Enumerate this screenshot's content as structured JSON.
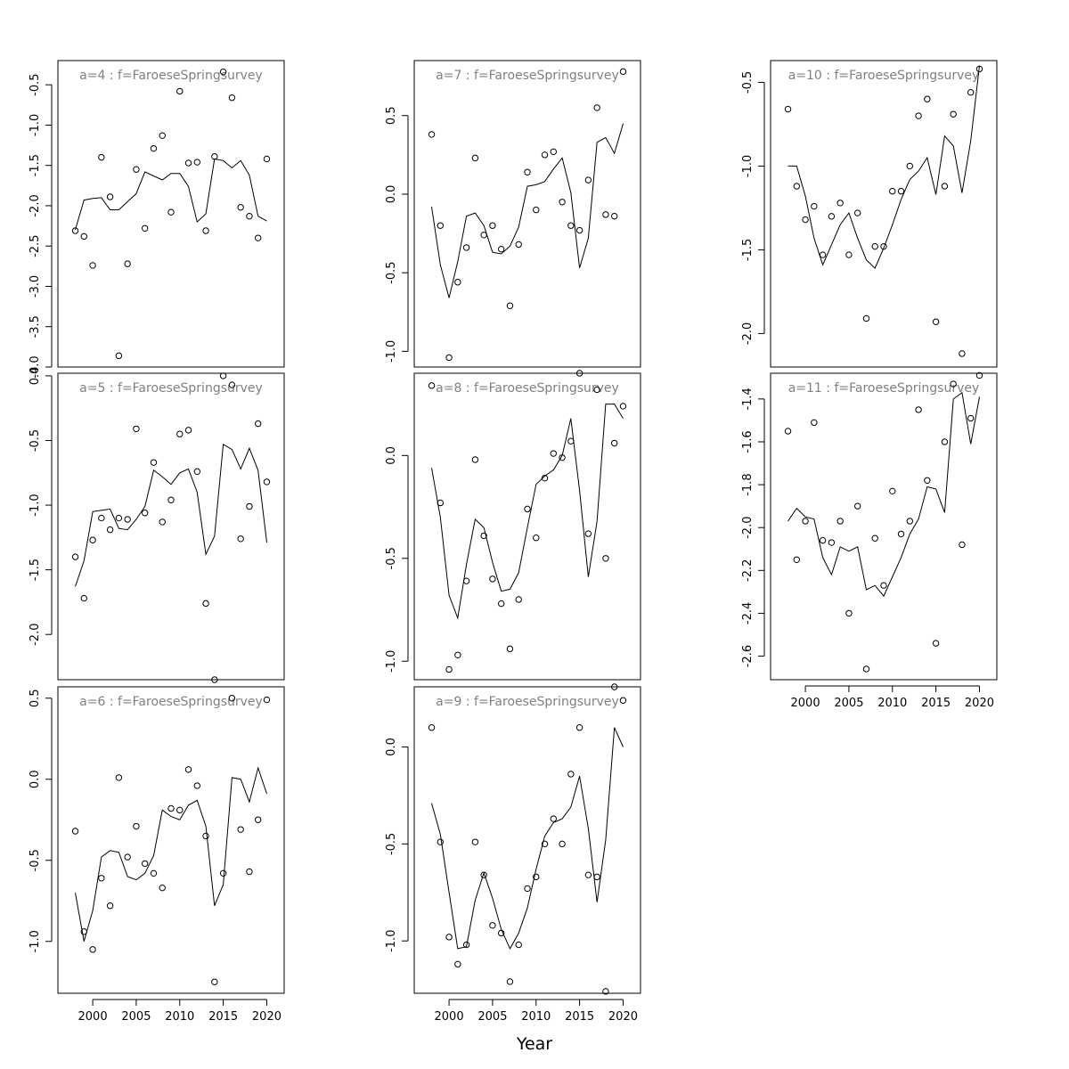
{
  "figure": {
    "xlabel": "Year"
  },
  "chart_data": [
    {
      "type": "line",
      "title": "a=4  :  f=FaroeseSpringsurvey",
      "xlim": [
        1996,
        2022
      ],
      "ylim": [
        -4.0,
        -0.2
      ],
      "yticks": [
        -4.0,
        -3.5,
        -3.0,
        -2.5,
        -2.0,
        -1.5,
        -1.0,
        -0.5
      ],
      "ytick_labels": [
        "-4.0",
        "-3.5",
        "-3.0",
        "-2.5",
        "-2.0",
        "-1.5",
        "-1.0",
        "-0.5"
      ],
      "xticks": [],
      "xtick_labels": [],
      "x": [
        1998,
        1999,
        2000,
        2001,
        2002,
        2003,
        2004,
        2005,
        2006,
        2007,
        2008,
        2009,
        2010,
        2011,
        2012,
        2013,
        2014,
        2015,
        2016,
        2017,
        2018,
        2019,
        2020
      ],
      "points": [
        -2.31,
        -2.38,
        -2.74,
        -1.4,
        -1.89,
        -3.86,
        -2.72,
        -1.55,
        -2.28,
        -1.29,
        -1.13,
        -2.08,
        -0.58,
        -1.47,
        -1.46,
        -2.31,
        -1.39,
        -0.34,
        -0.66,
        -2.02,
        -2.13,
        -2.4,
        -1.42
      ],
      "line": [
        -2.3,
        -1.93,
        -1.91,
        -1.9,
        -2.05,
        -2.05,
        -1.95,
        -1.85,
        -1.58,
        -1.63,
        -1.68,
        -1.6,
        -1.6,
        -1.76,
        -2.2,
        -2.1,
        -1.42,
        -1.44,
        -1.53,
        -1.44,
        -1.62,
        -2.13,
        -2.19
      ]
    },
    {
      "type": "line",
      "title": "a=5  :  f=FaroeseSpringsurvey",
      "xlim": [
        1996,
        2022
      ],
      "ylim": [
        -2.35,
        0.02
      ],
      "yticks": [
        -2.0,
        -1.5,
        -1.0,
        -0.5,
        0.0
      ],
      "ytick_labels": [
        "-2.0",
        "-1.5",
        "-1.0",
        "-0.5",
        "0.0"
      ],
      "xticks": [],
      "xtick_labels": [],
      "x": [
        1998,
        1999,
        2000,
        2001,
        2002,
        2003,
        2004,
        2005,
        2006,
        2007,
        2008,
        2009,
        2010,
        2011,
        2012,
        2013,
        2014,
        2015,
        2016,
        2017,
        2018,
        2019,
        2020
      ],
      "points": [
        -1.4,
        -1.72,
        -1.27,
        -1.1,
        -1.19,
        -1.1,
        -1.11,
        -0.41,
        -1.06,
        -0.67,
        -1.13,
        -0.96,
        -0.45,
        -0.42,
        -0.74,
        -1.76,
        -2.35,
        0.0,
        -0.07,
        -1.26,
        -1.01,
        -0.37,
        -0.82
      ],
      "line": [
        -1.63,
        -1.43,
        -1.05,
        -1.04,
        -1.03,
        -1.18,
        -1.19,
        -1.11,
        -1.01,
        -0.73,
        -0.78,
        -0.84,
        -0.75,
        -0.72,
        -0.9,
        -1.38,
        -1.24,
        -0.53,
        -0.57,
        -0.72,
        -0.56,
        -0.73,
        -1.29
      ]
    },
    {
      "type": "line",
      "title": "a=6  :  f=FaroeseSpringsurvey",
      "xlim": [
        1996,
        2022
      ],
      "ylim": [
        -1.32,
        0.57
      ],
      "yticks": [
        -1.0,
        -0.5,
        0.0,
        0.5
      ],
      "ytick_labels": [
        "-1.0",
        "-0.5",
        "0.0",
        "0.5"
      ],
      "xticks": [
        2000,
        2005,
        2010,
        2015,
        2020
      ],
      "xtick_labels": [
        "2000",
        "2005",
        "2010",
        "2015",
        "2020"
      ],
      "x": [
        1998,
        1999,
        2000,
        2001,
        2002,
        2003,
        2004,
        2005,
        2006,
        2007,
        2008,
        2009,
        2010,
        2011,
        2012,
        2013,
        2014,
        2015,
        2016,
        2017,
        2018,
        2019,
        2020
      ],
      "points": [
        -0.32,
        -0.94,
        -1.05,
        -0.61,
        -0.78,
        0.01,
        -0.48,
        -0.29,
        -0.52,
        -0.58,
        -0.67,
        -0.18,
        -0.19,
        0.06,
        -0.04,
        -0.35,
        -1.25,
        -0.58,
        0.5,
        -0.31,
        -0.57,
        -0.25,
        0.49
      ],
      "line": [
        -0.7,
        -1.0,
        -0.81,
        -0.48,
        -0.44,
        -0.45,
        -0.6,
        -0.62,
        -0.58,
        -0.47,
        -0.19,
        -0.23,
        -0.25,
        -0.16,
        -0.13,
        -0.29,
        -0.78,
        -0.65,
        0.01,
        0.0,
        -0.14,
        0.07,
        -0.09
      ]
    },
    {
      "type": "line",
      "title": "a=7  :  f=FaroeseSpringsurvey",
      "xlim": [
        1996,
        2022
      ],
      "ylim": [
        -1.1,
        0.85
      ],
      "yticks": [
        -1.0,
        -0.5,
        0.0,
        0.5
      ],
      "ytick_labels": [
        "-1.0",
        "-0.5",
        "0.0",
        "0.5"
      ],
      "xticks": [],
      "xtick_labels": [],
      "x": [
        1998,
        1999,
        2000,
        2001,
        2002,
        2003,
        2004,
        2005,
        2006,
        2007,
        2008,
        2009,
        2010,
        2011,
        2012,
        2013,
        2014,
        2015,
        2016,
        2017,
        2018,
        2019,
        2020
      ],
      "points": [
        0.38,
        -0.2,
        -1.04,
        -0.56,
        -0.34,
        0.23,
        -0.26,
        -0.2,
        -0.35,
        -0.71,
        -0.32,
        0.14,
        -0.1,
        0.25,
        0.27,
        -0.05,
        -0.2,
        -0.23,
        0.09,
        0.55,
        -0.13,
        -0.14,
        0.78
      ],
      "line": [
        -0.08,
        -0.45,
        -0.66,
        -0.43,
        -0.14,
        -0.12,
        -0.2,
        -0.37,
        -0.38,
        -0.33,
        -0.21,
        0.05,
        0.06,
        0.08,
        0.16,
        0.23,
        0.01,
        -0.47,
        -0.28,
        0.33,
        0.36,
        0.26,
        0.45
      ]
    },
    {
      "type": "line",
      "title": "a=8  :  f=FaroeseSpringsurvey",
      "xlim": [
        1996,
        2022
      ],
      "ylim": [
        -1.09,
        0.4
      ],
      "yticks": [
        -1.0,
        -0.5,
        0.0
      ],
      "ytick_labels": [
        "-1.0",
        "-0.5",
        "0.0"
      ],
      "xticks": [],
      "xtick_labels": [],
      "x": [
        1998,
        1999,
        2000,
        2001,
        2002,
        2003,
        2004,
        2005,
        2006,
        2007,
        2008,
        2009,
        2010,
        2011,
        2012,
        2013,
        2014,
        2015,
        2016,
        2017,
        2018,
        2019,
        2020
      ],
      "points": [
        0.34,
        -0.23,
        -1.04,
        -0.97,
        -0.61,
        -0.02,
        -0.39,
        -0.6,
        -0.72,
        -0.94,
        -0.7,
        -0.26,
        -0.4,
        -0.11,
        0.01,
        -0.01,
        0.07,
        0.4,
        -0.38,
        0.32,
        -0.5,
        0.06,
        0.24
      ],
      "line": [
        -0.06,
        -0.3,
        -0.68,
        -0.79,
        -0.53,
        -0.31,
        -0.35,
        -0.52,
        -0.66,
        -0.65,
        -0.57,
        -0.35,
        -0.14,
        -0.1,
        -0.07,
        0.0,
        0.18,
        -0.17,
        -0.59,
        -0.32,
        0.25,
        0.25,
        0.18
      ]
    },
    {
      "type": "line",
      "title": "a=9  :  f=FaroeseSpringsurvey",
      "xlim": [
        1996,
        2022
      ],
      "ylim": [
        -1.27,
        0.31
      ],
      "yticks": [
        -1.0,
        -0.5,
        0.0
      ],
      "ytick_labels": [
        "-1.0",
        "-0.5",
        "0.0"
      ],
      "xticks": [
        2000,
        2005,
        2010,
        2015,
        2020
      ],
      "xtick_labels": [
        "2000",
        "2005",
        "2010",
        "2015",
        "2020"
      ],
      "x": [
        1998,
        1999,
        2000,
        2001,
        2002,
        2003,
        2004,
        2005,
        2006,
        2007,
        2008,
        2009,
        2010,
        2011,
        2012,
        2013,
        2014,
        2015,
        2016,
        2017,
        2018,
        2019,
        2020
      ],
      "points": [
        0.1,
        -0.49,
        -0.98,
        -1.12,
        -1.02,
        -0.49,
        -0.66,
        -0.92,
        -0.96,
        -1.21,
        -1.02,
        -0.73,
        -0.67,
        -0.5,
        -0.37,
        -0.5,
        -0.14,
        0.1,
        -0.66,
        -0.67,
        -1.26,
        0.31,
        0.24
      ],
      "line": [
        -0.29,
        -0.45,
        -0.75,
        -1.04,
        -1.03,
        -0.79,
        -0.65,
        -0.78,
        -0.94,
        -1.04,
        -0.96,
        -0.83,
        -0.63,
        -0.46,
        -0.39,
        -0.37,
        -0.31,
        -0.15,
        -0.42,
        -0.8,
        -0.48,
        0.1,
        0.0
      ]
    },
    {
      "type": "line",
      "title": "a=10  :  f=FaroeseSpringsurvey",
      "xlim": [
        1996,
        2022
      ],
      "ylim": [
        -2.2,
        -0.37
      ],
      "yticks": [
        -2.0,
        -1.5,
        -1.0,
        -0.5
      ],
      "ytick_labels": [
        "-2.0",
        "-1.5",
        "-1.0",
        "-0.5"
      ],
      "xticks": [],
      "xtick_labels": [],
      "x": [
        1998,
        1999,
        2000,
        2001,
        2002,
        2003,
        2004,
        2005,
        2006,
        2007,
        2008,
        2009,
        2010,
        2011,
        2012,
        2013,
        2014,
        2015,
        2016,
        2017,
        2018,
        2019,
        2020
      ],
      "points": [
        -0.66,
        -1.12,
        -1.32,
        -1.24,
        -1.53,
        -1.3,
        -1.22,
        -1.53,
        -1.28,
        -1.91,
        -1.48,
        -1.48,
        -1.15,
        -1.15,
        -1.0,
        -0.7,
        -0.6,
        -1.93,
        -1.12,
        -0.69,
        -2.12,
        -0.56,
        -0.42
      ],
      "line": [
        -1.0,
        -1.0,
        -1.18,
        -1.43,
        -1.59,
        -1.47,
        -1.35,
        -1.28,
        -1.43,
        -1.56,
        -1.61,
        -1.49,
        -1.35,
        -1.2,
        -1.08,
        -1.03,
        -0.95,
        -1.17,
        -0.82,
        -0.88,
        -1.16,
        -0.85,
        -0.4
      ]
    },
    {
      "type": "line",
      "title": "a=11  :  f=FaroeseSpringsurvey",
      "xlim": [
        1996,
        2022
      ],
      "ylim": [
        -2.71,
        -1.28
      ],
      "yticks": [
        -2.6,
        -2.4,
        -2.2,
        -2.0,
        -1.8,
        -1.6,
        -1.4
      ],
      "ytick_labels": [
        "-2.6",
        "-2.4",
        "-2.2",
        "-2.0",
        "-1.8",
        "-1.6",
        "-1.4"
      ],
      "xticks": [
        2000,
        2005,
        2010,
        2015,
        2020
      ],
      "xtick_labels": [
        "2000",
        "2005",
        "2010",
        "2015",
        "2020"
      ],
      "x": [
        1998,
        1999,
        2000,
        2001,
        2002,
        2003,
        2004,
        2005,
        2006,
        2007,
        2008,
        2009,
        2010,
        2011,
        2012,
        2013,
        2014,
        2015,
        2016,
        2017,
        2018,
        2019,
        2020
      ],
      "points": [
        -1.55,
        -2.15,
        -1.97,
        -1.51,
        -2.06,
        -2.07,
        -1.97,
        -2.4,
        -1.9,
        -2.66,
        -2.05,
        -2.27,
        -1.83,
        -2.03,
        -1.97,
        -1.45,
        -1.78,
        -2.54,
        -1.6,
        -1.33,
        -2.08,
        -1.49,
        -1.29
      ],
      "line": [
        -1.97,
        -1.91,
        -1.95,
        -1.96,
        -2.14,
        -2.22,
        -2.09,
        -2.11,
        -2.09,
        -2.29,
        -2.27,
        -2.32,
        -2.23,
        -2.14,
        -2.03,
        -1.96,
        -1.81,
        -1.82,
        -1.93,
        -1.4,
        -1.37,
        -1.61,
        -1.39
      ]
    }
  ]
}
